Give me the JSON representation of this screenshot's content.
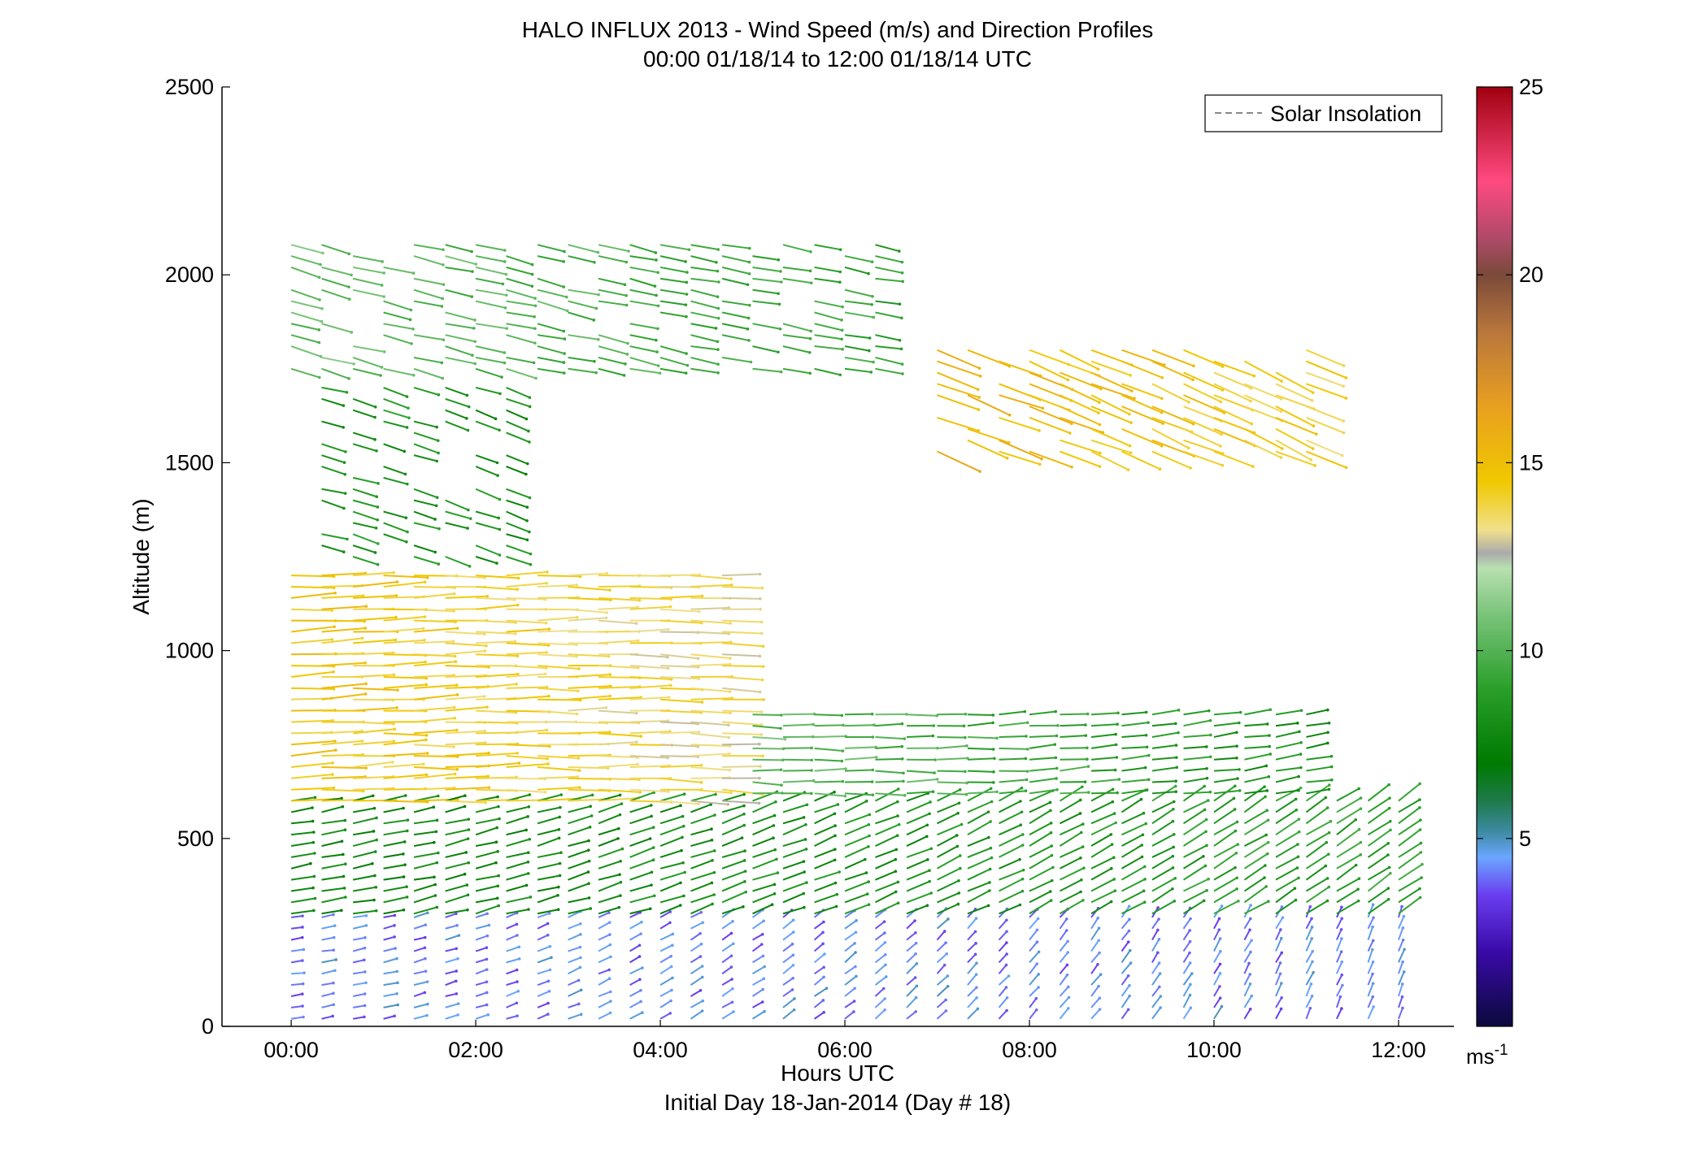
{
  "title_line1": "HALO INFLUX 2013 - Wind Speed (m/s) and Direction Profiles",
  "title_line2": "00:00 01/18/14 to 12:00 01/18/14  UTC",
  "xlabel": "Hours UTC",
  "footer": "Initial Day 18-Jan-2014 (Day # 18)",
  "ylabel": "Altitude (m)",
  "legend_label": "Solar Insolation",
  "colorbar_unit_base": "ms",
  "colorbar_unit_exp": "-1",
  "chart_data": {
    "type": "quiver",
    "title": "HALO INFLUX 2013 - Wind Speed (m/s) and Direction Profiles",
    "subtitle": "00:00 01/18/14 to 12:00 01/18/14  UTC",
    "xlabel": "Hours UTC",
    "ylabel": "Altitude (m)",
    "x_units": "hours UTC",
    "xlim": [
      -0.75,
      12.6
    ],
    "ylim": [
      0,
      2500
    ],
    "x_ticks": [
      0,
      2,
      4,
      6,
      8,
      10,
      12
    ],
    "x_tick_labels": [
      "00:00",
      "02:00",
      "04:00",
      "06:00",
      "08:00",
      "10:00",
      "12:00"
    ],
    "y_ticks": [
      0,
      500,
      1000,
      1500,
      2000,
      2500
    ],
    "y_tick_labels": [
      "0",
      "500",
      "1000",
      "1500",
      "2000",
      "2500"
    ],
    "legend": {
      "entries": [
        "Solar Insolation"
      ],
      "position": "top-right",
      "line_style": "dashed",
      "color": "#888888"
    },
    "colorbar": {
      "range": [
        0,
        25
      ],
      "ticks": [
        5,
        10,
        15,
        20,
        25
      ],
      "tick_labels": [
        "5",
        "10",
        "15",
        "20",
        "25"
      ],
      "unit": "ms-1",
      "stops": [
        {
          "v": 0,
          "color": "#0a0a3c"
        },
        {
          "v": 2,
          "color": "#3a0aa8"
        },
        {
          "v": 3.5,
          "color": "#6a3ef0"
        },
        {
          "v": 4.5,
          "color": "#6aa6ff"
        },
        {
          "v": 5.2,
          "color": "#3c8aa0"
        },
        {
          "v": 6,
          "color": "#1e7a4a"
        },
        {
          "v": 7,
          "color": "#007a00"
        },
        {
          "v": 9,
          "color": "#2aa02a"
        },
        {
          "v": 11,
          "color": "#7cc47c"
        },
        {
          "v": 12.2,
          "color": "#b8e0b0"
        },
        {
          "v": 12.6,
          "color": "#aaaaaa"
        },
        {
          "v": 13.2,
          "color": "#f0e08c"
        },
        {
          "v": 14.5,
          "color": "#f0c800"
        },
        {
          "v": 16.5,
          "color": "#e8a020"
        },
        {
          "v": 18.5,
          "color": "#b8763c"
        },
        {
          "v": 20,
          "color": "#7a4a3a"
        },
        {
          "v": 21,
          "color": "#b04a6a"
        },
        {
          "v": 22.5,
          "color": "#ff4a80"
        },
        {
          "v": 25,
          "color": "#a00010"
        }
      ]
    },
    "profile_times_h": [
      0,
      0.33,
      0.67,
      1.0,
      1.33,
      1.67,
      2.0,
      2.33,
      2.67,
      3.0,
      3.33,
      3.67,
      4.0,
      4.33,
      4.67,
      5.0,
      5.33,
      5.67,
      6.0,
      6.33,
      6.67,
      7.0,
      7.33,
      7.67,
      8.0,
      8.33,
      8.67,
      9.0,
      9.33,
      9.67,
      10.0,
      10.33,
      10.67,
      11.0,
      11.33,
      11.67,
      12.0
    ],
    "bands": [
      {
        "name": "surface",
        "alt_min": 20,
        "alt_max": 300,
        "t_start": 0,
        "t_end": 12.0,
        "speed_start": 4.2,
        "speed_end": 4.2,
        "dir_start_deg": 8,
        "dir_end_deg": 70
      },
      {
        "name": "lower",
        "alt_min": 300,
        "alt_max": 600,
        "t_start": 0,
        "t_end": 12.0,
        "speed_start": 7.5,
        "speed_end": 9.0,
        "dir_start_deg": 10,
        "dir_end_deg": 35
      },
      {
        "name": "mid",
        "alt_min": 600,
        "alt_max": 1200,
        "t_start": 0,
        "t_end": 4.7,
        "speed_start": 14.6,
        "speed_end": 13.4,
        "dir_start_deg": 3,
        "dir_end_deg": -2
      },
      {
        "name": "mid-late",
        "alt_min": 620,
        "alt_max": 850,
        "t_start": 4.7,
        "t_end": 11.3,
        "speed_start": 10.5,
        "speed_end": 8.0,
        "dir_start_deg": -3,
        "dir_end_deg": 10
      },
      {
        "name": "cloud",
        "alt_min": 1250,
        "alt_max": 1700,
        "t_start": 0.2,
        "t_end": 2.6,
        "speed_start": 8.5,
        "speed_end": 8.0,
        "dir_start_deg": -15,
        "dir_end_deg": -20
      },
      {
        "name": "upper",
        "alt_min": 1750,
        "alt_max": 2080,
        "t_start": 0,
        "t_end": 6.6,
        "speed_start": 10.5,
        "speed_end": 9.0,
        "dir_start_deg": -15,
        "dir_end_deg": -10
      },
      {
        "name": "upper-late",
        "alt_min": 1530,
        "alt_max": 1820,
        "t_start": 6.9,
        "t_end": 11.3,
        "speed_start": 15.5,
        "speed_end": 14.0,
        "dir_start_deg": -20,
        "dir_end_deg": -25
      }
    ]
  }
}
